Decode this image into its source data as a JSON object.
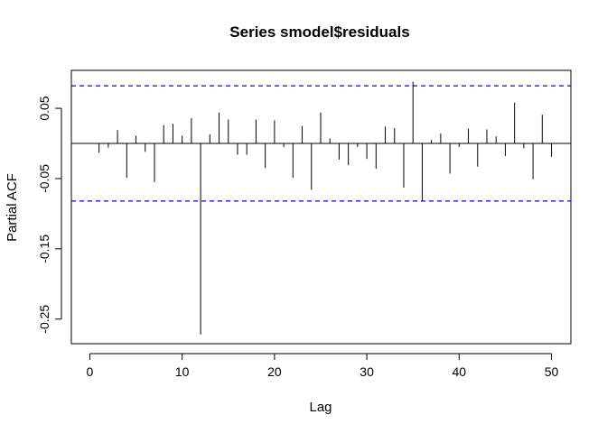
{
  "chart_data": {
    "type": "bar",
    "title": "Series  smodel$residuals",
    "xlabel": "Lag",
    "ylabel": "Partial ACF",
    "xlim": [
      -2,
      52.1
    ],
    "ylim": [
      -0.285,
      0.104
    ],
    "x_ticks": [
      0,
      10,
      20,
      30,
      40,
      50
    ],
    "x_tick_labels": [
      "0",
      "10",
      "20",
      "30",
      "40",
      "50"
    ],
    "y_ticks": [
      -0.25,
      -0.15,
      -0.05,
      0.05
    ],
    "y_tick_labels": [
      "-0.25",
      "-0.15",
      "-0.05",
      "0.05"
    ],
    "confidence_bounds": [
      0.082,
      -0.082
    ],
    "bound_color": "#0000ff",
    "bar_color": "#000000",
    "lags": [
      1,
      2,
      3,
      4,
      5,
      6,
      7,
      8,
      9,
      10,
      11,
      12,
      13,
      14,
      15,
      16,
      17,
      18,
      19,
      20,
      21,
      22,
      23,
      24,
      25,
      26,
      27,
      28,
      29,
      30,
      31,
      32,
      33,
      34,
      35,
      36,
      37,
      38,
      39,
      40,
      41,
      42,
      43,
      44,
      45,
      46,
      47,
      48,
      49,
      50
    ],
    "values": [
      -0.013,
      -0.006,
      0.019,
      -0.049,
      0.011,
      -0.012,
      -0.055,
      0.026,
      0.028,
      0.011,
      0.036,
      -0.272,
      0.013,
      0.044,
      0.034,
      -0.016,
      -0.016,
      0.034,
      -0.035,
      0.033,
      -0.005,
      -0.049,
      0.025,
      -0.066,
      0.044,
      0.007,
      -0.023,
      -0.031,
      -0.005,
      -0.022,
      -0.036,
      0.024,
      0.022,
      -0.063,
      0.088,
      -0.082,
      0.005,
      0.014,
      -0.043,
      -0.005,
      0.021,
      -0.033,
      0.02,
      0.01,
      -0.018,
      0.058,
      -0.007,
      -0.051,
      0.041,
      -0.019
    ]
  }
}
